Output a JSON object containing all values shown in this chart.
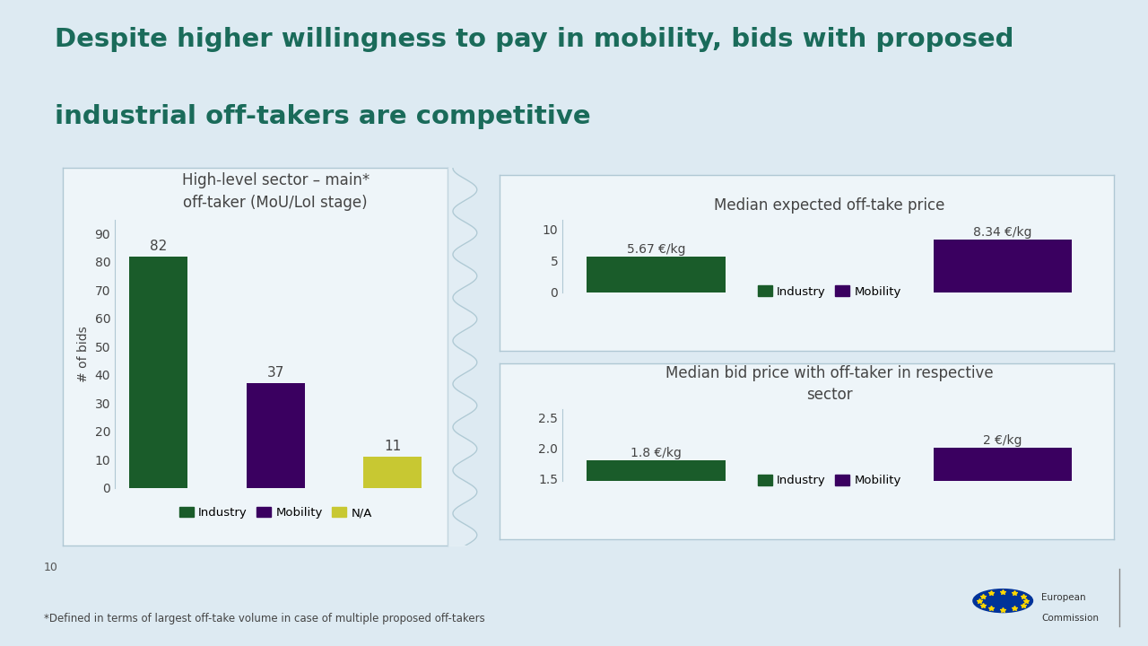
{
  "title_line1": "Despite higher willingness to pay in mobility, bids with proposed",
  "title_line2": "industrial off-takers are competitive",
  "title_color": "#1a6b5a",
  "bg_color": "#ddeaf2",
  "panel_bg": "#eef5f9",
  "left_chart": {
    "title": "High-level sector – main*\noff-taker (MoU/LoI stage)",
    "categories": [
      "Industry",
      "Mobility",
      "N/A"
    ],
    "values": [
      82,
      37,
      11
    ],
    "colors": [
      "#1a5c2a",
      "#3a0060",
      "#c8c832"
    ],
    "ylabel": "# of bids",
    "yticks": [
      0,
      10,
      20,
      30,
      40,
      50,
      60,
      70,
      80,
      90
    ],
    "ylim": [
      0,
      95
    ]
  },
  "top_right_chart": {
    "title": "Median expected off-take price",
    "categories": [
      "Industry",
      "Mobility"
    ],
    "values": [
      5.67,
      8.34
    ],
    "labels": [
      "5.67 €/kg",
      "8.34 €/kg"
    ],
    "colors": [
      "#1a5c2a",
      "#3a0060"
    ],
    "yticks": [
      0,
      5,
      10
    ],
    "ylim": [
      0,
      11.5
    ]
  },
  "bottom_right_chart": {
    "title": "Median bid price with off-taker in respective\nsector",
    "categories": [
      "Industry",
      "Mobility"
    ],
    "values": [
      1.8,
      2.0
    ],
    "labels": [
      "1.8 €/kg",
      "2 €/kg"
    ],
    "colors": [
      "#1a5c2a",
      "#3a0060"
    ],
    "yticks": [
      1.5,
      2.0,
      2.5
    ],
    "ylim": [
      1.45,
      2.65
    ]
  },
  "footer_text": "*Defined in terms of largest off-take volume in case of multiple proposed off-takers",
  "page_number": "10",
  "divider_color": "#2a9d8a",
  "legend_industry": "Industry",
  "legend_mobility": "Mobility",
  "legend_na": "N/A"
}
